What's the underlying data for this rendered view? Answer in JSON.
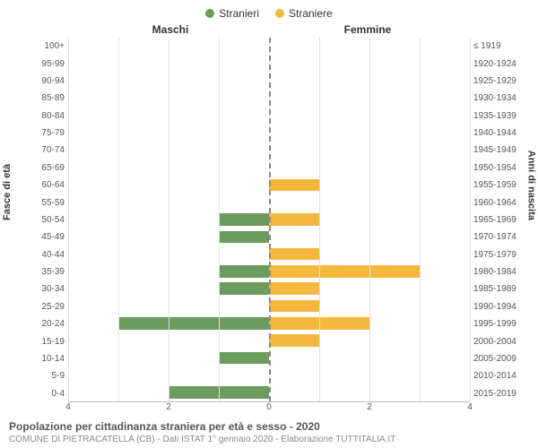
{
  "legend": {
    "male": {
      "label": "Stranieri",
      "color": "#6b9c5d"
    },
    "female": {
      "label": "Straniere",
      "color": "#f5b83d"
    }
  },
  "headers": {
    "left": "Maschi",
    "right": "Femmine"
  },
  "yaxis_left_title": "Fasce di età",
  "yaxis_right_title": "Anni di nascita",
  "axis": {
    "max": 4,
    "ticks": [
      4,
      2,
      0,
      2,
      4
    ],
    "gridline_color": "#e0e0e0",
    "centerline_color": "#888888"
  },
  "categories": [
    {
      "age": "100+",
      "birth": "≤ 1919",
      "m": 0,
      "f": 0
    },
    {
      "age": "95-99",
      "birth": "1920-1924",
      "m": 0,
      "f": 0
    },
    {
      "age": "90-94",
      "birth": "1925-1929",
      "m": 0,
      "f": 0
    },
    {
      "age": "85-89",
      "birth": "1930-1934",
      "m": 0,
      "f": 0
    },
    {
      "age": "80-84",
      "birth": "1935-1939",
      "m": 0,
      "f": 0
    },
    {
      "age": "75-79",
      "birth": "1940-1944",
      "m": 0,
      "f": 0
    },
    {
      "age": "70-74",
      "birth": "1945-1949",
      "m": 0,
      "f": 0
    },
    {
      "age": "65-69",
      "birth": "1950-1954",
      "m": 0,
      "f": 0
    },
    {
      "age": "60-64",
      "birth": "1955-1959",
      "m": 0,
      "f": 1
    },
    {
      "age": "55-59",
      "birth": "1960-1964",
      "m": 0,
      "f": 0
    },
    {
      "age": "50-54",
      "birth": "1965-1969",
      "m": 1,
      "f": 1
    },
    {
      "age": "45-49",
      "birth": "1970-1974",
      "m": 1,
      "f": 0
    },
    {
      "age": "40-44",
      "birth": "1975-1979",
      "m": 0,
      "f": 1
    },
    {
      "age": "35-39",
      "birth": "1980-1984",
      "m": 1,
      "f": 3
    },
    {
      "age": "30-34",
      "birth": "1985-1989",
      "m": 1,
      "f": 1
    },
    {
      "age": "25-29",
      "birth": "1990-1994",
      "m": 0,
      "f": 1
    },
    {
      "age": "20-24",
      "birth": "1995-1999",
      "m": 3,
      "f": 2
    },
    {
      "age": "15-19",
      "birth": "2000-2004",
      "m": 0,
      "f": 1
    },
    {
      "age": "10-14",
      "birth": "2005-2009",
      "m": 1,
      "f": 0
    },
    {
      "age": "5-9",
      "birth": "2010-2014",
      "m": 0,
      "f": 0
    },
    {
      "age": "0-4",
      "birth": "2015-2019",
      "m": 2,
      "f": 0
    }
  ],
  "caption_title": "Popolazione per cittadinanza straniera per età e sesso - 2020",
  "caption_sub": "COMUNE DI PIETRACATELLA (CB) - Dati ISTAT 1° gennaio 2020 - Elaborazione TUTTITALIA.IT",
  "colors": {
    "background": "#ffffff",
    "text": "#333333",
    "text_muted": "#888888"
  },
  "font_sizes": {
    "legend": 12,
    "header": 12,
    "ytick": 10,
    "xtick": 10,
    "caption1": 12,
    "caption2": 10
  }
}
